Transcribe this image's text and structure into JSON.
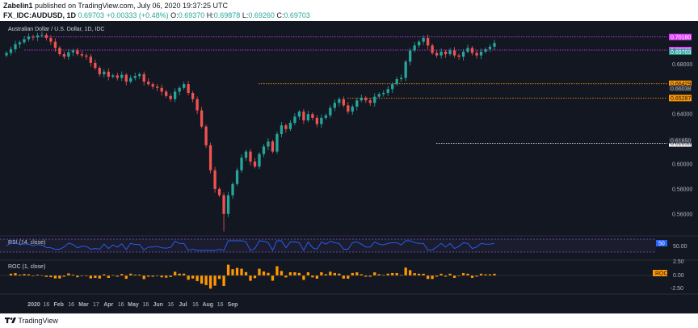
{
  "header": {
    "author": "Zabelin1",
    "published_text": "published on TradingView.com, July 06, 2020 19:37:25 UTC",
    "symbol": "FX_IDC:AUDUSD, 1D",
    "last": "0.69703",
    "change": "+0.00333 (+0.48%)",
    "open_label": "O:",
    "open": "0.69370",
    "high_label": "H:",
    "high": "0.69878",
    "low_label": "L:",
    "low": "0.69260",
    "close_label": "C:",
    "close": "0.69703"
  },
  "footer": {
    "brand": "TradingView"
  },
  "colors": {
    "up": "#26a69a",
    "down": "#ef5350",
    "magenta": "#e040fb",
    "orange": "#ff9800",
    "white_line": "#d1d4dc",
    "rsi_line": "#2962ff",
    "roc_bar": "#ff9800",
    "background": "#131722"
  },
  "chart_data": [
    {
      "type": "candlestick",
      "title": "Australian Dollar / U.S. Dollar, 1D, IDC",
      "x_tick_labels": [
        "2020",
        "16",
        "Feb",
        "16",
        "Mar",
        "17",
        "Apr",
        "16",
        "May",
        "16",
        "Jun",
        "16",
        "Jul",
        "16",
        "Aug",
        "16",
        "Sep"
      ],
      "y_tick_labels": [
        "0.68000",
        "0.64000",
        "0.60000",
        "0.58000",
        "0.56000"
      ],
      "y_tick_values": [
        0.68,
        0.64,
        0.6,
        0.58,
        0.56
      ],
      "ylim": [
        0.545,
        0.712
      ],
      "horizontal_levels": [
        {
          "label": "0.70180",
          "value": 0.7018,
          "color": "#e040fb",
          "style": "dotted"
        },
        {
          "label": "0.69130",
          "value": 0.6913,
          "color": "#e040fb",
          "style": "dotted"
        },
        {
          "label": "0.66429",
          "value": 0.66429,
          "color": "#ff9800",
          "style": "dotted"
        },
        {
          "label": "0.65287",
          "value": 0.65287,
          "color": "#ff9800",
          "style": "dotted"
        },
        {
          "label": "0.61650",
          "value": 0.6165,
          "color": "#d1d4dc",
          "style": "dotted"
        }
      ],
      "overlapping_tag_labels": [
        "0.69703",
        "0.66038",
        "0.61650"
      ],
      "candles_close": [
        0.689,
        0.692,
        0.696,
        0.6975,
        0.7,
        0.702,
        0.7015,
        0.703,
        0.7035,
        0.701,
        0.698,
        0.693,
        0.688,
        0.686,
        0.6895,
        0.691,
        0.688,
        0.687,
        0.686,
        0.681,
        0.677,
        0.672,
        0.674,
        0.67,
        0.671,
        0.669,
        0.6715,
        0.666,
        0.669,
        0.6705,
        0.672,
        0.666,
        0.664,
        0.662,
        0.661,
        0.658,
        0.6545,
        0.652,
        0.658,
        0.661,
        0.664,
        0.657,
        0.652,
        0.643,
        0.63,
        0.615,
        0.595,
        0.58,
        0.575,
        0.56,
        0.575,
        0.584,
        0.595,
        0.605,
        0.61,
        0.602,
        0.598,
        0.608,
        0.614,
        0.618,
        0.61,
        0.624,
        0.631,
        0.628,
        0.633,
        0.638,
        0.642,
        0.635,
        0.64,
        0.637,
        0.632,
        0.637,
        0.639,
        0.645,
        0.649,
        0.652,
        0.647,
        0.642,
        0.646,
        0.651,
        0.653,
        0.651,
        0.649,
        0.654,
        0.656,
        0.657,
        0.66,
        0.664,
        0.668,
        0.669,
        0.682,
        0.691,
        0.695,
        0.698,
        0.701,
        0.695,
        0.689,
        0.687,
        0.69,
        0.688,
        0.691,
        0.687,
        0.686,
        0.69,
        0.693,
        0.689,
        0.687,
        0.69,
        0.692,
        0.694,
        0.697
      ]
    },
    {
      "type": "line",
      "title": "RSI (14, close)",
      "y_tick_labels": [
        "50.00"
      ],
      "value_tag": "50"
    },
    {
      "type": "bar",
      "title": "ROC (1, close)",
      "y_tick_labels": [
        "2.50",
        "0.00",
        "-2.50"
      ],
      "value_tag": "ROC"
    }
  ]
}
